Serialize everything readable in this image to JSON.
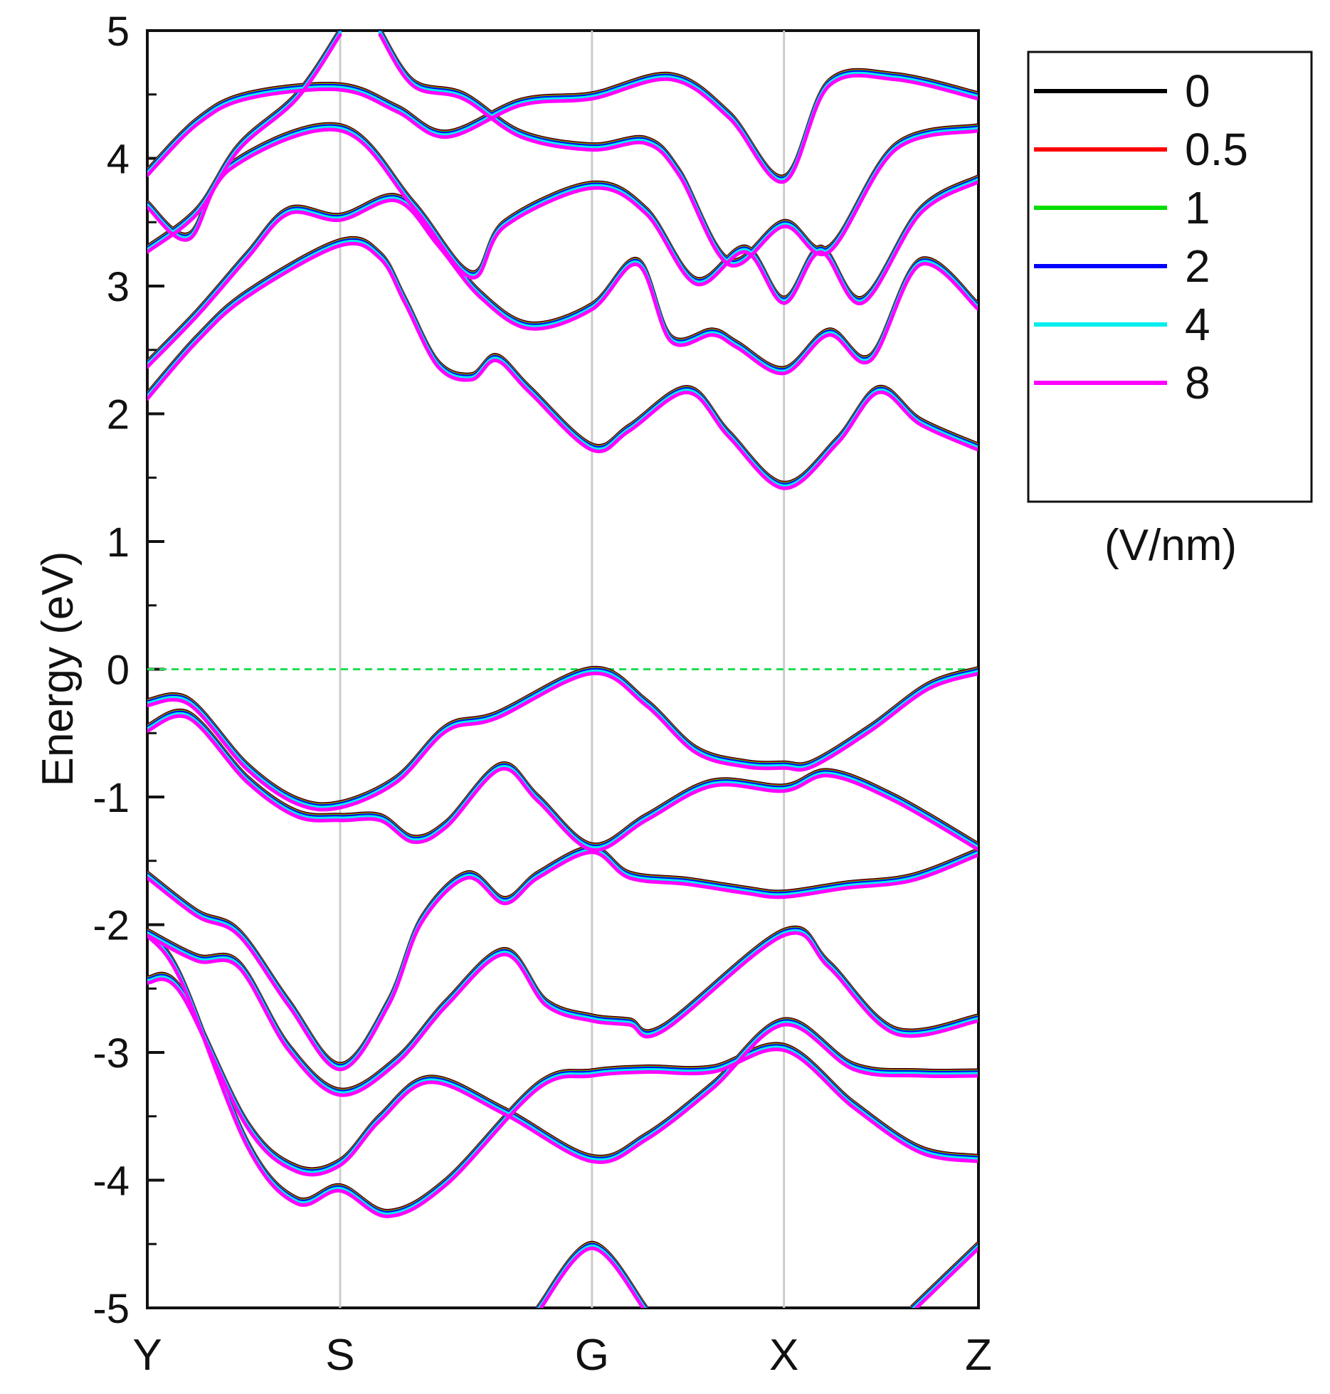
{
  "chart_data": {
    "type": "line",
    "title": "",
    "xlabel": "",
    "ylabel": "Energy (eV)",
    "ylim": [
      -5,
      5
    ],
    "yticks": [
      -5,
      -4,
      -3,
      -2,
      -1,
      0,
      1,
      2,
      3,
      4,
      5
    ],
    "ytick_labels": [
      "-5",
      "-4",
      "-3",
      "-2",
      "-1",
      "0",
      "1",
      "2",
      "3",
      "4",
      "5"
    ],
    "kpath": {
      "labels": [
        "Y",
        "S",
        "G",
        "X",
        "Z"
      ],
      "positions": [
        0,
        0.232,
        0.535,
        0.766,
        1.0
      ]
    },
    "fermi_level": 0,
    "legend": {
      "placement": "outside-right",
      "unit": "(V/nm)",
      "entries": [
        {
          "label": "0",
          "color": "#000000"
        },
        {
          "label": "0.5",
          "color": "#ff0000"
        },
        {
          "label": "1",
          "color": "#00dd00"
        },
        {
          "label": "2",
          "color": "#0000ff"
        },
        {
          "label": "4",
          "color": "#00eeee"
        },
        {
          "label": "8",
          "color": "#ff00ff"
        }
      ]
    },
    "colors": {
      "fermi": "#22dd55",
      "kline": "#cccccc"
    },
    "bands": [
      {
        "name": "valence-1",
        "points": [
          [
            0,
            -0.25
          ],
          [
            0.05,
            -0.24
          ],
          [
            0.12,
            -0.75
          ],
          [
            0.18,
            -1.02
          ],
          [
            0.232,
            -1.05
          ],
          [
            0.3,
            -0.85
          ],
          [
            0.36,
            -0.45
          ],
          [
            0.42,
            -0.35
          ],
          [
            0.535,
            0.0
          ],
          [
            0.6,
            -0.25
          ],
          [
            0.66,
            -0.62
          ],
          [
            0.72,
            -0.73
          ],
          [
            0.766,
            -0.74
          ],
          [
            0.8,
            -0.73
          ],
          [
            0.87,
            -0.45
          ],
          [
            0.94,
            -0.12
          ],
          [
            1.0,
            0.0
          ]
        ]
      },
      {
        "name": "valence-2",
        "points": [
          [
            0,
            -0.45
          ],
          [
            0.05,
            -0.35
          ],
          [
            0.12,
            -0.85
          ],
          [
            0.18,
            -1.12
          ],
          [
            0.232,
            -1.15
          ],
          [
            0.28,
            -1.15
          ],
          [
            0.32,
            -1.32
          ],
          [
            0.36,
            -1.2
          ],
          [
            0.425,
            -0.75
          ],
          [
            0.47,
            -1.0
          ],
          [
            0.535,
            -1.38
          ],
          [
            0.6,
            -1.15
          ],
          [
            0.68,
            -0.88
          ],
          [
            0.766,
            -0.92
          ],
          [
            0.82,
            -0.8
          ],
          [
            0.9,
            -1.0
          ],
          [
            1.0,
            -1.38
          ]
        ]
      },
      {
        "name": "valence-3",
        "points": [
          [
            0,
            -1.6
          ],
          [
            0.06,
            -1.9
          ],
          [
            0.11,
            -2.05
          ],
          [
            0.17,
            -2.6
          ],
          [
            0.232,
            -3.1
          ],
          [
            0.29,
            -2.6
          ],
          [
            0.33,
            -1.95
          ],
          [
            0.385,
            -1.6
          ],
          [
            0.43,
            -1.8
          ],
          [
            0.47,
            -1.6
          ],
          [
            0.535,
            -1.4
          ],
          [
            0.58,
            -1.6
          ],
          [
            0.65,
            -1.65
          ],
          [
            0.72,
            -1.72
          ],
          [
            0.766,
            -1.75
          ],
          [
            0.84,
            -1.68
          ],
          [
            0.92,
            -1.62
          ],
          [
            1.0,
            -1.42
          ]
        ]
      },
      {
        "name": "valence-4",
        "points": [
          [
            0,
            -2.05
          ],
          [
            0.06,
            -2.25
          ],
          [
            0.11,
            -2.3
          ],
          [
            0.17,
            -2.95
          ],
          [
            0.232,
            -3.3
          ],
          [
            0.3,
            -3.05
          ],
          [
            0.36,
            -2.6
          ],
          [
            0.43,
            -2.2
          ],
          [
            0.48,
            -2.6
          ],
          [
            0.535,
            -2.72
          ],
          [
            0.58,
            -2.75
          ],
          [
            0.62,
            -2.8
          ],
          [
            0.766,
            -2.05
          ],
          [
            0.82,
            -2.3
          ],
          [
            0.9,
            -2.82
          ],
          [
            1.0,
            -2.72
          ]
        ]
      },
      {
        "name": "valence-5",
        "points": [
          [
            0,
            -2.42
          ],
          [
            0.04,
            -2.5
          ],
          [
            0.12,
            -3.55
          ],
          [
            0.18,
            -3.9
          ],
          [
            0.232,
            -3.85
          ],
          [
            0.28,
            -3.5
          ],
          [
            0.34,
            -3.2
          ],
          [
            0.43,
            -3.45
          ],
          [
            0.535,
            -3.82
          ],
          [
            0.6,
            -3.65
          ],
          [
            0.68,
            -3.25
          ],
          [
            0.766,
            -2.75
          ],
          [
            0.85,
            -3.1
          ],
          [
            0.93,
            -3.15
          ],
          [
            1.0,
            -3.15
          ]
        ]
      },
      {
        "name": "valence-6",
        "points": [
          [
            0,
            -2.05
          ],
          [
            0.04,
            -2.4
          ],
          [
            0.12,
            -3.7
          ],
          [
            0.18,
            -4.15
          ],
          [
            0.232,
            -4.05
          ],
          [
            0.29,
            -4.25
          ],
          [
            0.36,
            -4.0
          ],
          [
            0.47,
            -3.25
          ],
          [
            0.535,
            -3.15
          ],
          [
            0.6,
            -3.12
          ],
          [
            0.68,
            -3.12
          ],
          [
            0.766,
            -2.95
          ],
          [
            0.85,
            -3.4
          ],
          [
            0.93,
            -3.75
          ],
          [
            1.0,
            -3.82
          ]
        ]
      },
      {
        "name": "valence-7",
        "points": [
          [
            0.47,
            -5.0
          ],
          [
            0.535,
            -4.5
          ],
          [
            0.6,
            -5.0
          ]
        ]
      },
      {
        "name": "valence-8",
        "points": [
          [
            0.92,
            -5.0
          ],
          [
            1.0,
            -4.5
          ]
        ]
      },
      {
        "name": "conduction-1",
        "points": [
          [
            0,
            2.15
          ],
          [
            0.06,
            2.6
          ],
          [
            0.12,
            2.95
          ],
          [
            0.232,
            3.35
          ],
          [
            0.28,
            3.25
          ],
          [
            0.31,
            2.9
          ],
          [
            0.35,
            2.4
          ],
          [
            0.39,
            2.3
          ],
          [
            0.42,
            2.45
          ],
          [
            0.46,
            2.2
          ],
          [
            0.535,
            1.75
          ],
          [
            0.58,
            1.9
          ],
          [
            0.65,
            2.2
          ],
          [
            0.7,
            1.85
          ],
          [
            0.766,
            1.45
          ],
          [
            0.83,
            1.8
          ],
          [
            0.88,
            2.2
          ],
          [
            0.93,
            1.95
          ],
          [
            1.0,
            1.75
          ]
        ]
      },
      {
        "name": "conduction-2",
        "points": [
          [
            0,
            2.4
          ],
          [
            0.06,
            2.8
          ],
          [
            0.12,
            3.25
          ],
          [
            0.17,
            3.6
          ],
          [
            0.232,
            3.55
          ],
          [
            0.3,
            3.7
          ],
          [
            0.35,
            3.35
          ],
          [
            0.4,
            2.95
          ],
          [
            0.46,
            2.7
          ],
          [
            0.535,
            2.85
          ],
          [
            0.59,
            3.2
          ],
          [
            0.63,
            2.6
          ],
          [
            0.68,
            2.65
          ],
          [
            0.71,
            2.55
          ],
          [
            0.766,
            2.35
          ],
          [
            0.82,
            2.65
          ],
          [
            0.87,
            2.45
          ],
          [
            0.93,
            3.2
          ],
          [
            1.0,
            2.85
          ]
        ]
      },
      {
        "name": "conduction-3",
        "points": [
          [
            0,
            3.65
          ],
          [
            0.05,
            3.4
          ],
          [
            0.1,
            3.95
          ],
          [
            0.232,
            4.25
          ],
          [
            0.32,
            3.65
          ],
          [
            0.39,
            3.1
          ],
          [
            0.43,
            3.5
          ],
          [
            0.535,
            3.8
          ],
          [
            0.6,
            3.6
          ],
          [
            0.66,
            3.05
          ],
          [
            0.72,
            3.3
          ],
          [
            0.766,
            2.9
          ],
          [
            0.81,
            3.3
          ],
          [
            0.86,
            2.9
          ],
          [
            0.93,
            3.6
          ],
          [
            1.0,
            3.85
          ]
        ]
      },
      {
        "name": "conduction-4",
        "points": [
          [
            0,
            3.9
          ],
          [
            0.06,
            4.3
          ],
          [
            0.12,
            4.5
          ],
          [
            0.232,
            4.57
          ],
          [
            0.3,
            4.4
          ],
          [
            0.36,
            4.2
          ],
          [
            0.45,
            4.45
          ],
          [
            0.535,
            4.5
          ],
          [
            0.63,
            4.65
          ],
          [
            0.7,
            4.35
          ],
          [
            0.766,
            3.85
          ],
          [
            0.82,
            4.6
          ],
          [
            0.9,
            4.65
          ],
          [
            1.0,
            4.5
          ]
        ]
      },
      {
        "name": "conduction-5",
        "points": [
          [
            0,
            3.3
          ],
          [
            0.06,
            3.6
          ],
          [
            0.11,
            4.1
          ],
          [
            0.18,
            4.5
          ],
          [
            0.232,
            5.0
          ]
        ]
      },
      {
        "name": "conduction-6",
        "points": [
          [
            0.28,
            5.0
          ],
          [
            0.32,
            4.6
          ],
          [
            0.38,
            4.5
          ],
          [
            0.45,
            4.2
          ],
          [
            0.535,
            4.1
          ],
          [
            0.6,
            4.15
          ],
          [
            0.64,
            3.9
          ],
          [
            0.7,
            3.2
          ],
          [
            0.766,
            3.5
          ],
          [
            0.82,
            3.3
          ],
          [
            0.9,
            4.1
          ],
          [
            1.0,
            4.25
          ]
        ]
      }
    ]
  }
}
